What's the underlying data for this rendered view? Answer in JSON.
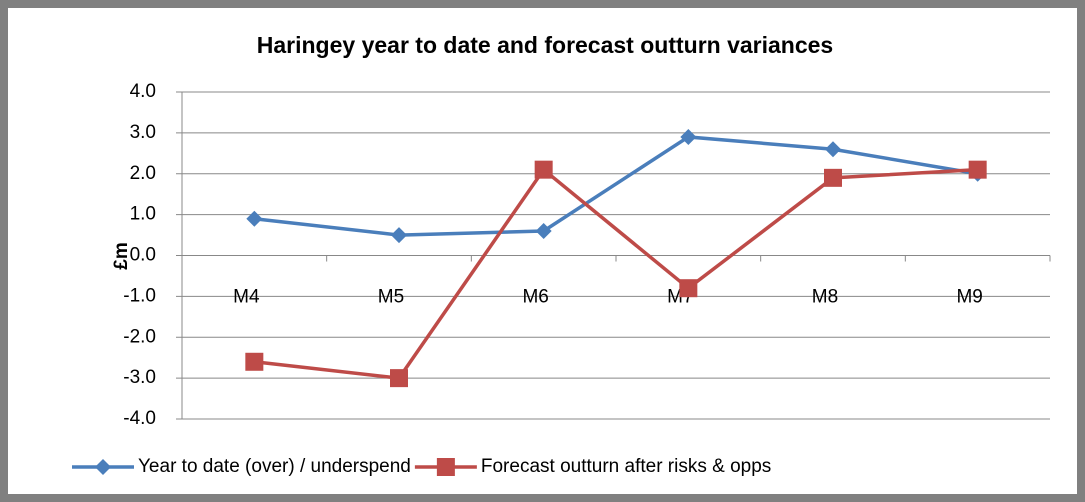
{
  "chart_data": {
    "type": "line",
    "title": "Haringey year to date and forecast outturn variances",
    "y_label": "£m",
    "categories": [
      "M4",
      "M5",
      "M6",
      "M7",
      "M8",
      "M9"
    ],
    "series": [
      {
        "name": "Year to date (over) / underspend",
        "color": "#4a7ebb",
        "marker": "diamond",
        "values": [
          0.9,
          0.5,
          0.6,
          2.9,
          2.6,
          2.0
        ]
      },
      {
        "name": "Forecast outturn after risks & opps",
        "color": "#be4b48",
        "marker": "square",
        "values": [
          -2.6,
          -3.0,
          2.1,
          -0.8,
          1.9,
          2.1
        ]
      }
    ],
    "ylim": [
      -4,
      4
    ],
    "yticks": [
      {
        "value": -4,
        "label": "-4.0"
      },
      {
        "value": -3,
        "label": "-3.0"
      },
      {
        "value": -2,
        "label": "-2.0"
      },
      {
        "value": -1,
        "label": "-1.0"
      },
      {
        "value": 0,
        "label": "0.0"
      },
      {
        "value": 1,
        "label": "1.0"
      },
      {
        "value": 2,
        "label": "2.0"
      },
      {
        "value": 3,
        "label": "3.0"
      },
      {
        "value": 4,
        "label": "4.0"
      }
    ],
    "grid": true,
    "legend": "bottom"
  }
}
